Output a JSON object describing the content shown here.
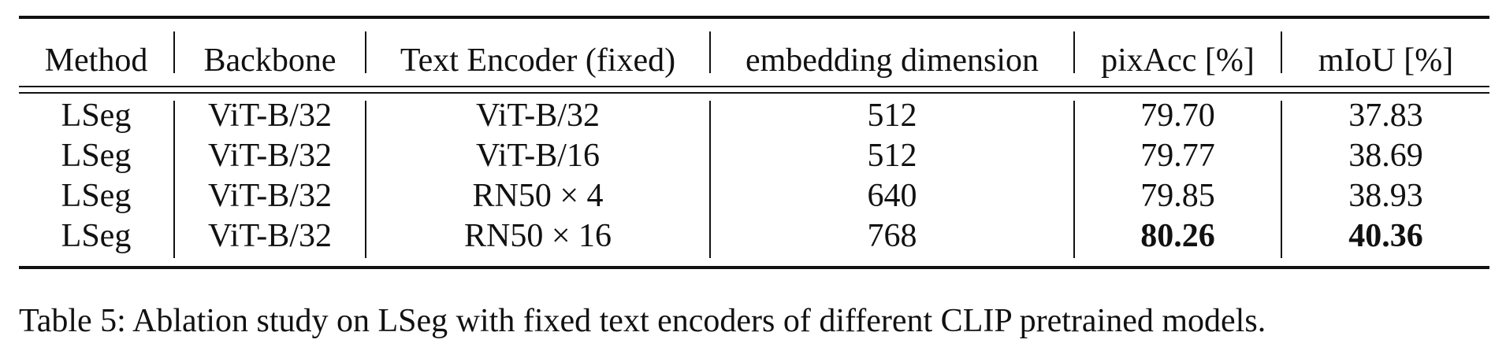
{
  "table": {
    "headers": [
      "Method",
      "Backbone",
      "Text Encoder (fixed)",
      "embedding dimension",
      "pixAcc [%]",
      "mIoU [%]"
    ],
    "rows": [
      [
        "LSeg",
        "ViT-B/32",
        "ViT-B/32",
        "512",
        "79.70",
        "37.83"
      ],
      [
        "LSeg",
        "ViT-B/32",
        "ViT-B/16",
        "512",
        "79.77",
        "38.69"
      ],
      [
        "LSeg",
        "ViT-B/32",
        "RN50 × 4",
        "640",
        "79.85",
        "38.93"
      ],
      [
        "LSeg",
        "ViT-B/32",
        "RN50 × 16",
        "768",
        "80.26",
        "40.36"
      ]
    ],
    "bold_row": 3,
    "bold_columns": [
      4,
      5
    ]
  },
  "caption": "Table 5: Ablation study on LSeg with fixed text encoders of different CLIP pretrained models."
}
